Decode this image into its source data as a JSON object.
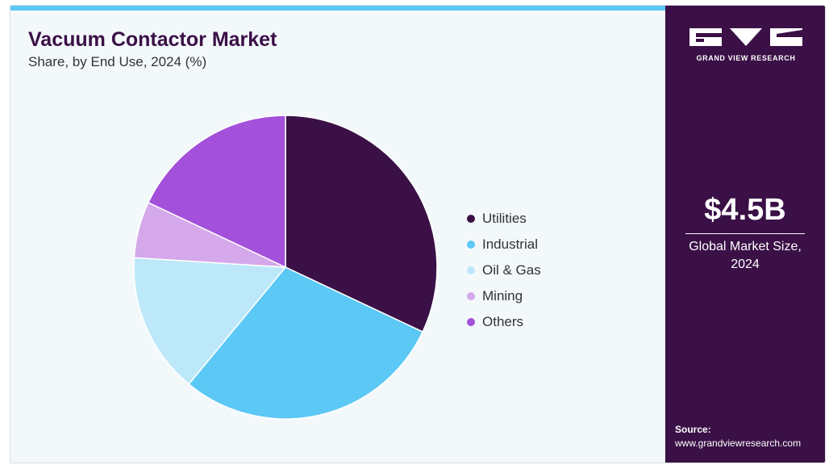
{
  "header": {
    "title": "Vacuum Contactor Market",
    "subtitle": "Share, by End Use, 2024 (%)"
  },
  "chart_data": {
    "type": "pie",
    "categories": [
      "Utilities",
      "Industrial",
      "Oil & Gas",
      "Mining",
      "Others"
    ],
    "values": [
      32,
      29,
      15,
      6,
      18
    ],
    "colors": [
      "#3a1046",
      "#5bc8f5",
      "#bde8f9",
      "#d4a8ea",
      "#a350db"
    ],
    "start_angle": "12 o'clock, clockwise",
    "legend_placement": "right"
  },
  "sidebar": {
    "logo_text": "GRAND VIEW RESEARCH",
    "market_size": "$4.5B",
    "market_label_line1": "Global Market Size,",
    "market_label_line2": "2024",
    "source_label": "Source:",
    "source_url": "www.grandviewresearch.com"
  }
}
